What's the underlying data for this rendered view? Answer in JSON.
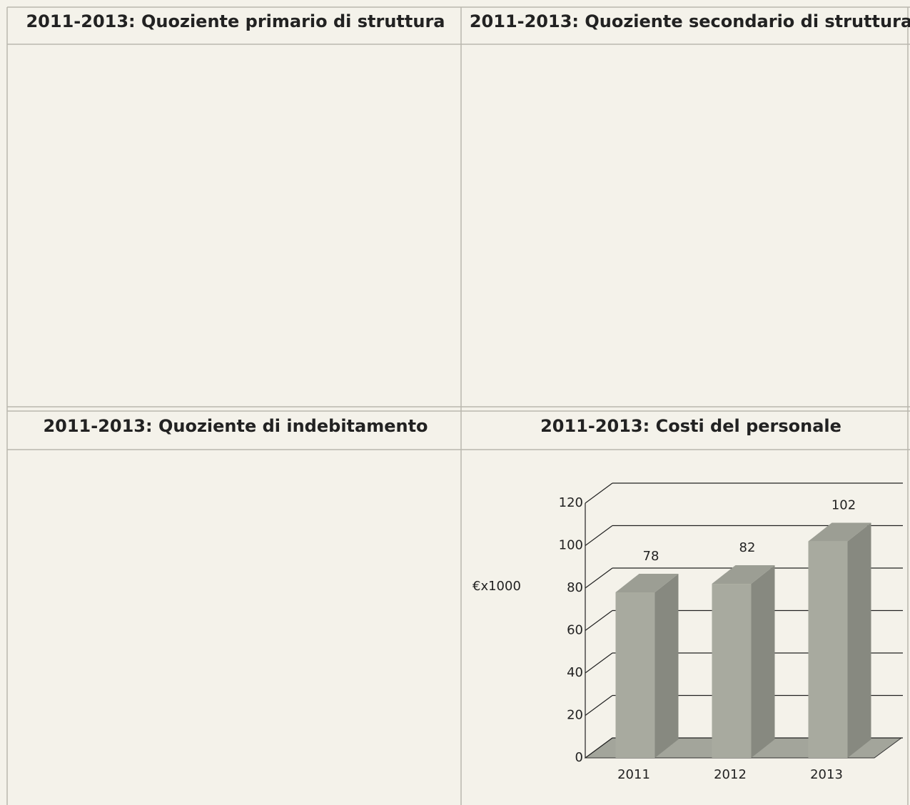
{
  "panels": [
    {
      "title": "2011-2013: Quoziente primario di struttura"
    },
    {
      "title": "2011-2013: Quoziente secondario di struttura"
    },
    {
      "title": "2011-2013: Quoziente di indebitamento"
    },
    {
      "title": "2011-2013: Costi del personale"
    }
  ],
  "chart_data": {
    "type": "bar",
    "ylabel": "€x1000",
    "categories": [
      "2011",
      "2012",
      "2013"
    ],
    "values": [
      78,
      82,
      102
    ],
    "ylim": [
      0,
      120
    ],
    "yticks": [
      0,
      20,
      40,
      60,
      80,
      100,
      120
    ],
    "grid": true,
    "color": "#a8aa9f"
  }
}
